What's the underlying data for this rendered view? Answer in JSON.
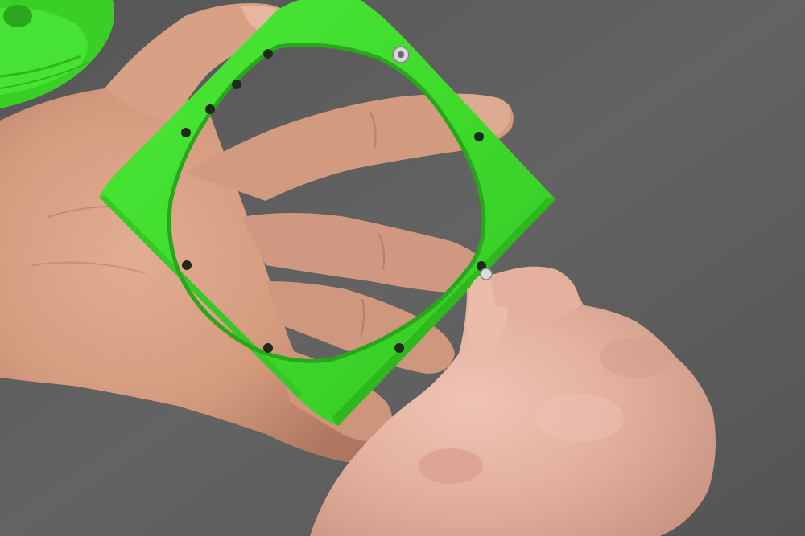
{
  "photo": {
    "subject": "",
    "colors": {
      "surface": "#5e5e5e",
      "surface_shadow": "#4a4a4a",
      "part_green": "#3fe02c",
      "part_green_shade": "#2fb81e",
      "part_green_highlight": "#6af25a",
      "skin_left": "#d9a185",
      "skin_left_shadow": "#b87c62",
      "skin_right": "#e7b5a4",
      "skin_right_shadow": "#c48f7e",
      "screw_metal": "#d8d8d8",
      "hole_dark": "#1e2a1a"
    }
  }
}
